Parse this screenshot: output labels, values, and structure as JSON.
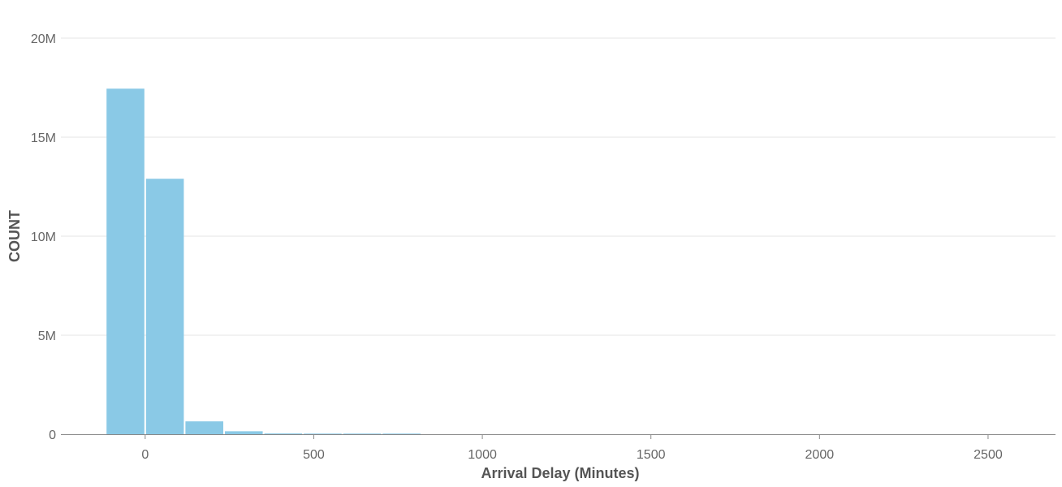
{
  "chart_data": {
    "type": "bar",
    "title": "",
    "xlabel": "Arrival Delay (Minutes)",
    "ylabel": "COUNT",
    "xlim": [
      -250,
      2700
    ],
    "ylim": [
      0,
      20000000
    ],
    "x_ticks": [
      {
        "value": 0,
        "label": "0"
      },
      {
        "value": 500,
        "label": "500"
      },
      {
        "value": 1000,
        "label": "1000"
      },
      {
        "value": 1500,
        "label": "1500"
      },
      {
        "value": 2000,
        "label": "2000"
      },
      {
        "value": 2500,
        "label": "2500"
      }
    ],
    "y_ticks": [
      {
        "value": 0,
        "label": "0"
      },
      {
        "value": 5000000,
        "label": "5M"
      },
      {
        "value": 10000000,
        "label": "10M"
      },
      {
        "value": 15000000,
        "label": "15M"
      },
      {
        "value": 20000000,
        "label": "20M"
      }
    ],
    "grid": true,
    "bins": [
      {
        "x0": -117,
        "x1": 0,
        "count": 17450000
      },
      {
        "x0": 0,
        "x1": 117,
        "count": 12900000
      },
      {
        "x0": 117,
        "x1": 234,
        "count": 650000
      },
      {
        "x0": 234,
        "x1": 351,
        "count": 150000
      },
      {
        "x0": 351,
        "x1": 468,
        "count": 40000
      },
      {
        "x0": 468,
        "x1": 585,
        "count": 12000
      },
      {
        "x0": 585,
        "x1": 702,
        "count": 4000
      },
      {
        "x0": 702,
        "x1": 819,
        "count": 1500
      }
    ],
    "bar_color": "#8ac9e6",
    "grid_color": "#e6e6e6",
    "axis_color": "#888888"
  }
}
